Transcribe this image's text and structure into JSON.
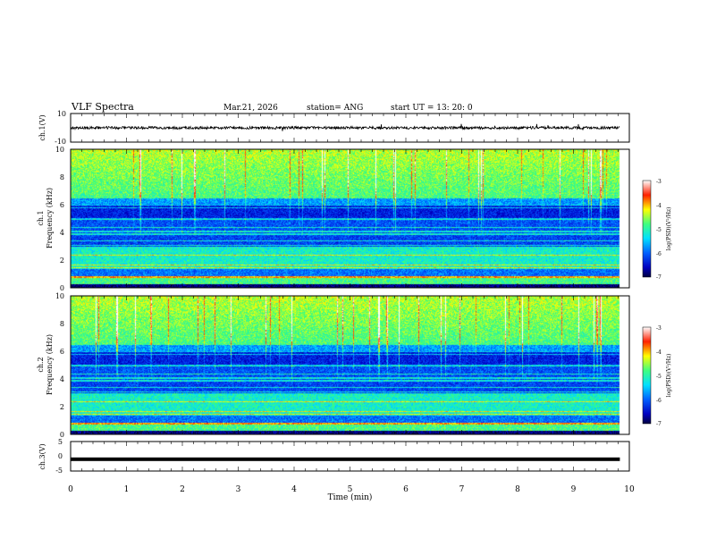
{
  "header": {
    "title": "VLF Spectra",
    "date": "Mar.21, 2026",
    "station": "station= ANG",
    "start": "start  UT =   13: 20: 0"
  },
  "chart_data": [
    {
      "type": "line",
      "name": "ch1-voltage",
      "ylabel": "ch.1(V)",
      "ylim": [
        -10,
        10
      ],
      "ytick_labels": [
        "10",
        "-10"
      ],
      "xlim": [
        0,
        10
      ],
      "baseline_V": 0
    },
    {
      "type": "heatmap",
      "name": "ch1-spectrogram",
      "ylabel": "ch.1\nFrequency (kHz)",
      "ylim": [
        0,
        10
      ],
      "ytick_labels": [
        "0",
        "2",
        "4",
        "6",
        "8",
        "10"
      ],
      "colorbar": {
        "label": "log(PSD)(V²/Hz)",
        "range": [
          -7,
          -3
        ],
        "tick_labels": [
          "-3",
          "-4",
          "-5",
          "-6",
          "-7"
        ]
      }
    },
    {
      "type": "heatmap",
      "name": "ch2-spectrogram",
      "ylabel": "ch.2\nFrequency (kHz)",
      "ylim": [
        0,
        10
      ],
      "ytick_labels": [
        "0",
        "2",
        "4",
        "6",
        "8",
        "10"
      ],
      "colorbar": {
        "label": "log(PSD)(V²/Hz)",
        "range": [
          -7,
          -3
        ],
        "tick_labels": [
          "-3",
          "-4",
          "-5",
          "-6",
          "-7"
        ]
      }
    },
    {
      "type": "line",
      "name": "ch3-voltage",
      "ylabel": "ch.3(V)",
      "ylim": [
        -5,
        5
      ],
      "ytick_labels": [
        "5",
        "0",
        "-5"
      ],
      "baseline_V": -1
    }
  ],
  "xaxis": {
    "label": "Time (min)",
    "range": [
      0,
      10
    ],
    "tick_labels": [
      "0",
      "1",
      "2",
      "3",
      "4",
      "5",
      "6",
      "7",
      "8",
      "9",
      "10"
    ],
    "data_end_min": 9.83
  }
}
